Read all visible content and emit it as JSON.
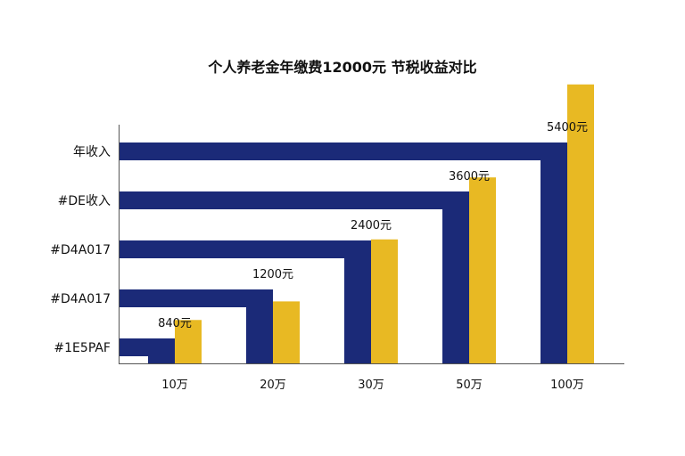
{
  "chart_data": {
    "type": "bar",
    "title": "个人养老金年缴费12000元 节税收益对比",
    "categories": [
      "10万",
      "20万",
      "30万",
      "50万",
      "100万"
    ],
    "row_labels": [
      "#1E5PAF",
      "#D4A017",
      "#D4A017",
      "#DE收入",
      "年收入"
    ],
    "value_labels": [
      "840元",
      "1200元",
      "2400元",
      "3600元",
      "5400元"
    ],
    "values": [
      840,
      1200,
      2400,
      3600,
      5400
    ],
    "ylim": [
      0,
      6000
    ],
    "grid": false,
    "colors": {
      "navy": "#1B2A78",
      "gold": "#E8B923",
      "axis": "#555555"
    }
  }
}
